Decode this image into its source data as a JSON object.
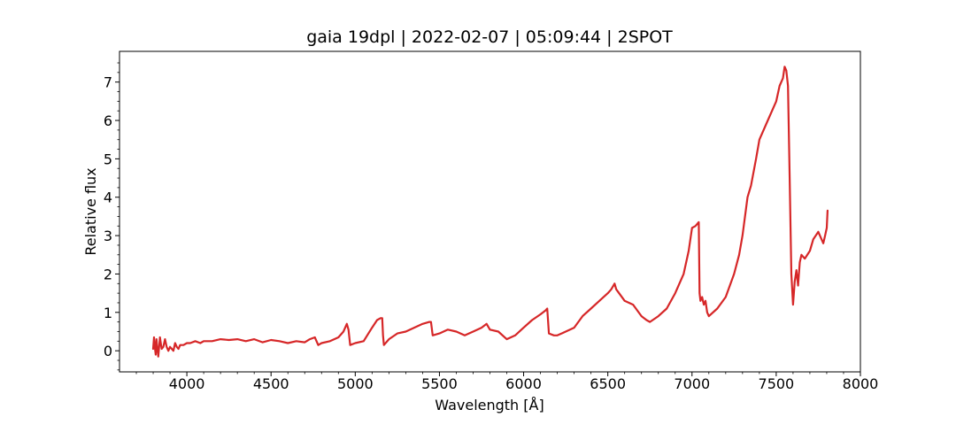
{
  "chart_data": {
    "type": "line",
    "title": "gaia 19dpl | 2022-02-07 | 05:09:44 | 2SPOT",
    "xlabel": "Wavelength [Å]",
    "ylabel": "Relative flux",
    "xlim": [
      3600,
      8000
    ],
    "ylim": [
      -0.55,
      7.8
    ],
    "xticks": [
      4000,
      4500,
      5000,
      5500,
      6000,
      6500,
      7000,
      7500,
      8000
    ],
    "xtick_labels": [
      "4000",
      "4500",
      "5000",
      "5500",
      "6000",
      "6500",
      "7000",
      "7500",
      "8000"
    ],
    "yticks": [
      0,
      1,
      2,
      3,
      4,
      5,
      6,
      7
    ],
    "ytick_labels": [
      "0",
      "1",
      "2",
      "3",
      "4",
      "5",
      "6",
      "7"
    ],
    "grid": false,
    "series": [
      {
        "color": "#d62728",
        "x": [
          3800,
          3805,
          3810,
          3815,
          3820,
          3825,
          3830,
          3840,
          3850,
          3860,
          3870,
          3880,
          3890,
          3900,
          3910,
          3920,
          3930,
          3940,
          3950,
          3960,
          3980,
          4000,
          4020,
          4050,
          4080,
          4100,
          4150,
          4200,
          4250,
          4300,
          4350,
          4400,
          4450,
          4500,
          4550,
          4600,
          4650,
          4700,
          4730,
          4760,
          4780,
          4800,
          4850,
          4900,
          4930,
          4950,
          4960,
          4970,
          5000,
          5050,
          5100,
          5130,
          5150,
          5160,
          5165,
          5170,
          5200,
          5250,
          5300,
          5350,
          5400,
          5440,
          5450,
          5460,
          5500,
          5550,
          5600,
          5650,
          5700,
          5750,
          5780,
          5800,
          5850,
          5900,
          5950,
          6000,
          6050,
          6100,
          6130,
          6140,
          6150,
          6180,
          6200,
          6250,
          6300,
          6350,
          6400,
          6450,
          6500,
          6520,
          6540,
          6550,
          6600,
          6650,
          6700,
          6730,
          6750,
          6800,
          6850,
          6900,
          6950,
          6980,
          7000,
          7020,
          7040,
          7045,
          7050,
          7060,
          7070,
          7080,
          7090,
          7100,
          7150,
          7200,
          7250,
          7280,
          7300,
          7330,
          7350,
          7380,
          7400,
          7450,
          7500,
          7520,
          7540,
          7550,
          7560,
          7570,
          7580,
          7590,
          7600,
          7610,
          7620,
          7630,
          7640,
          7650,
          7670,
          7700,
          7720,
          7750,
          7780,
          7790,
          7800,
          7805
        ],
        "values": [
          0.05,
          0.35,
          0.1,
          -0.1,
          0.3,
          0.05,
          -0.15,
          0.35,
          0.05,
          0.1,
          0.3,
          0.1,
          0.0,
          0.1,
          0.05,
          0.0,
          0.2,
          0.1,
          0.05,
          0.15,
          0.15,
          0.2,
          0.2,
          0.25,
          0.2,
          0.25,
          0.25,
          0.3,
          0.28,
          0.3,
          0.25,
          0.3,
          0.22,
          0.28,
          0.25,
          0.2,
          0.25,
          0.22,
          0.3,
          0.35,
          0.15,
          0.2,
          0.25,
          0.35,
          0.5,
          0.7,
          0.55,
          0.15,
          0.2,
          0.25,
          0.6,
          0.8,
          0.85,
          0.85,
          0.4,
          0.15,
          0.3,
          0.45,
          0.5,
          0.6,
          0.7,
          0.75,
          0.75,
          0.4,
          0.45,
          0.55,
          0.5,
          0.4,
          0.5,
          0.6,
          0.7,
          0.55,
          0.5,
          0.3,
          0.4,
          0.6,
          0.8,
          0.95,
          1.05,
          1.1,
          0.45,
          0.4,
          0.4,
          0.5,
          0.6,
          0.9,
          1.1,
          1.3,
          1.5,
          1.6,
          1.75,
          1.6,
          1.3,
          1.2,
          0.9,
          0.8,
          0.75,
          0.9,
          1.1,
          1.5,
          2.0,
          2.6,
          3.2,
          3.25,
          3.35,
          1.5,
          1.3,
          1.4,
          1.2,
          1.3,
          1.0,
          0.9,
          1.1,
          1.4,
          2.0,
          2.5,
          3.0,
          4.0,
          4.3,
          5.0,
          5.5,
          6.0,
          6.5,
          6.9,
          7.1,
          7.4,
          7.3,
          6.9,
          4.5,
          2.0,
          1.2,
          1.8,
          2.1,
          1.7,
          2.3,
          2.5,
          2.4,
          2.6,
          2.9,
          3.1,
          2.8,
          3.0,
          3.2,
          3.65
        ]
      }
    ]
  }
}
